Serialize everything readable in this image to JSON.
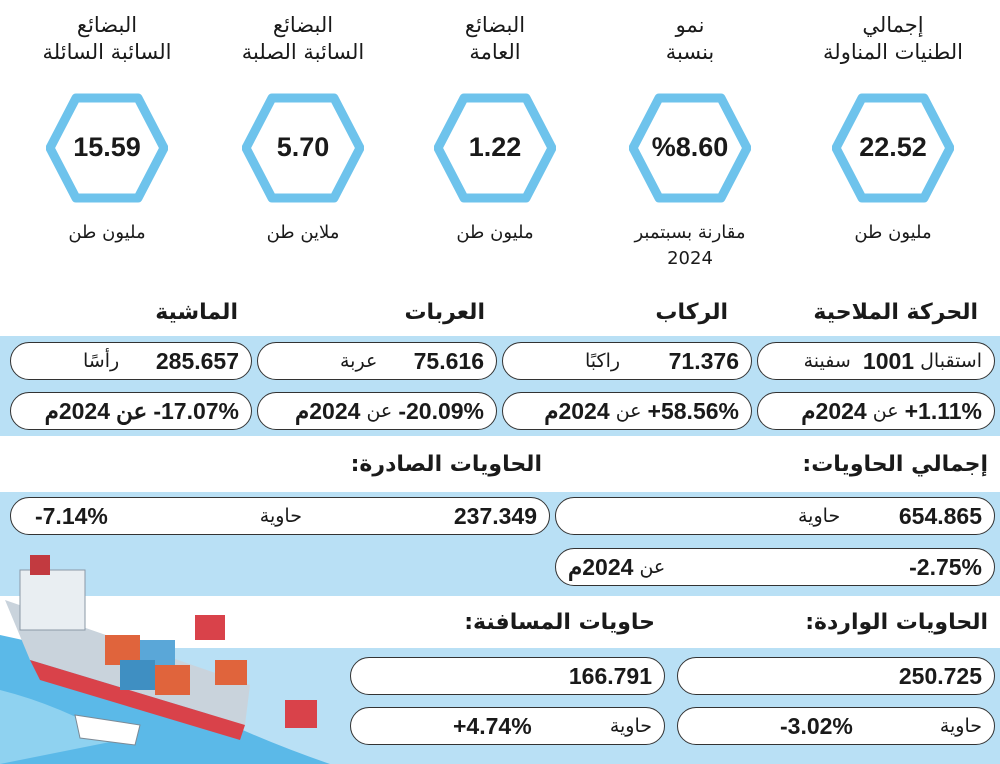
{
  "kpis": [
    {
      "title1": "إجمالي",
      "title2": "الطنيات المناولة",
      "value": "22.52",
      "unit": "مليون طن",
      "unit2": ""
    },
    {
      "title1": "نمو",
      "title2": "بنسبة",
      "value": "%8.60",
      "unit": "مقارنة بسبتمبر",
      "unit2": "2024"
    },
    {
      "title1": "البضائع",
      "title2": "العامة",
      "value": "1.22",
      "unit": "مليون طن",
      "unit2": ""
    },
    {
      "title1": "البضائع",
      "title2": "السائبة الصلبة",
      "value": "5.70",
      "unit": "ملاين طن",
      "unit2": ""
    },
    {
      "title1": "البضائع",
      "title2": "السائبة السائلة",
      "value": "15.59",
      "unit": "مليون طن",
      "unit2": ""
    }
  ],
  "traffic": {
    "headers": [
      "الحركة الملاحية",
      "الركاب",
      "العربات",
      "الماشية"
    ],
    "row1": [
      {
        "pre": "استقبال",
        "num": "1001",
        "unit": "سفينة"
      },
      {
        "num": "71.376",
        "unit": "راكبًا"
      },
      {
        "num": "75.616",
        "unit": "عربة"
      },
      {
        "num": "285.657",
        "unit": "رأسًا"
      }
    ],
    "row2": [
      {
        "pct": "+1.11%",
        "txt": "عن",
        "yr": "2024م"
      },
      {
        "pct": "+58.56%",
        "txt": "عن",
        "yr": "2024م"
      },
      {
        "pct": "-20.09%",
        "txt": "عن",
        "yr": "2024م"
      },
      {
        "pct": "-17.07%",
        "txt": "عن",
        "yr": "2024م"
      }
    ]
  },
  "containers": {
    "total_header": "إجمالي الحاويات:",
    "total_num": "654.865",
    "total_unit": "حاوية",
    "total_pct": "-2.75%",
    "total_txt": "عن",
    "total_yr": "2024م",
    "out_header": "الحاويات الصادرة:",
    "out_num": "237.349",
    "out_unit": "حاوية",
    "out_pct": "-7.14%",
    "in_header": "الحاويات الواردة:",
    "in_num": "250.725",
    "in_unit": "حاوية",
    "in_pct": "-3.02%",
    "trans_header": "حاويات المسافنة:",
    "trans_num": "166.791",
    "trans_unit": "حاوية",
    "trans_pct": "+4.74%"
  },
  "colors": {
    "band": "#b9e0f5",
    "hex": "#6ec3ec"
  }
}
